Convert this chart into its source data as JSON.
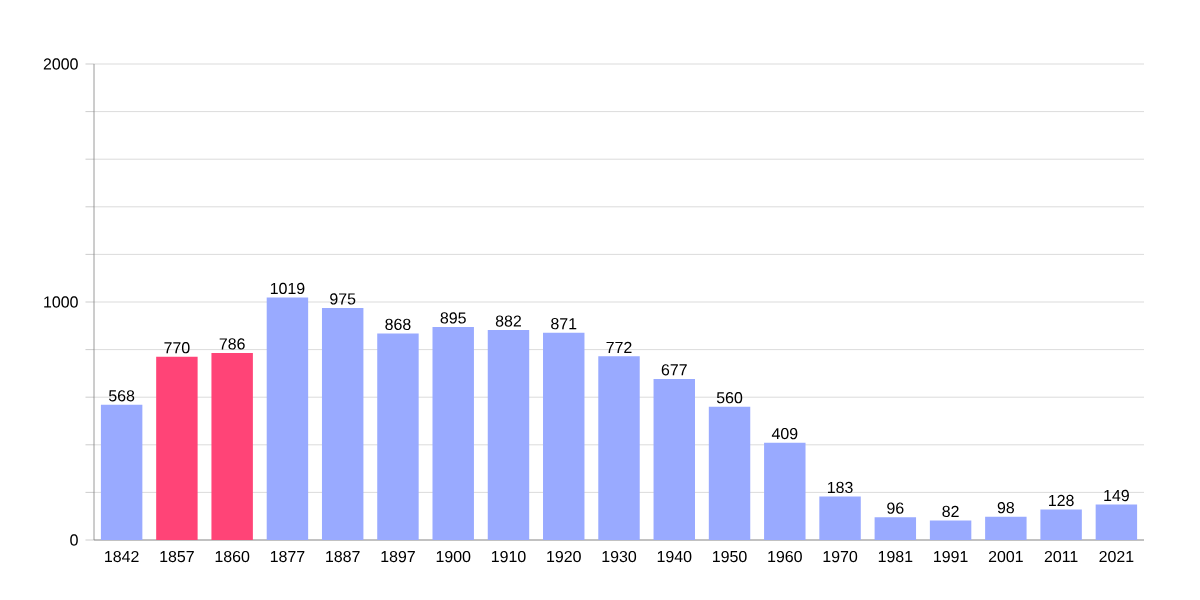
{
  "chart_data": {
    "type": "bar",
    "categories": [
      "1842",
      "1857",
      "1860",
      "1877",
      "1887",
      "1897",
      "1900",
      "1910",
      "1920",
      "1930",
      "1940",
      "1950",
      "1960",
      "1970",
      "1981",
      "1991",
      "2001",
      "2011",
      "2021"
    ],
    "values": [
      568,
      770,
      786,
      1019,
      975,
      868,
      895,
      882,
      871,
      772,
      677,
      560,
      409,
      183,
      96,
      82,
      98,
      128,
      149
    ],
    "colors": [
      "#99aaff",
      "#ff4477",
      "#ff4477",
      "#99aaff",
      "#99aaff",
      "#99aaff",
      "#99aaff",
      "#99aaff",
      "#99aaff",
      "#99aaff",
      "#99aaff",
      "#99aaff",
      "#99aaff",
      "#99aaff",
      "#99aaff",
      "#99aaff",
      "#99aaff",
      "#99aaff",
      "#99aaff"
    ],
    "ylim": [
      0,
      2000
    ],
    "yticks": [
      0,
      {
        "value": 200,
        "label": null
      },
      {
        "value": 400,
        "label": null
      },
      {
        "value": 600,
        "label": null
      },
      {
        "value": 800,
        "label": null
      },
      1000,
      {
        "value": 1200,
        "label": null
      },
      {
        "value": 1400,
        "label": null
      },
      {
        "value": 1600,
        "label": null
      },
      {
        "value": 1800,
        "label": null
      },
      2000
    ],
    "grid": "y",
    "data_labels": true
  }
}
